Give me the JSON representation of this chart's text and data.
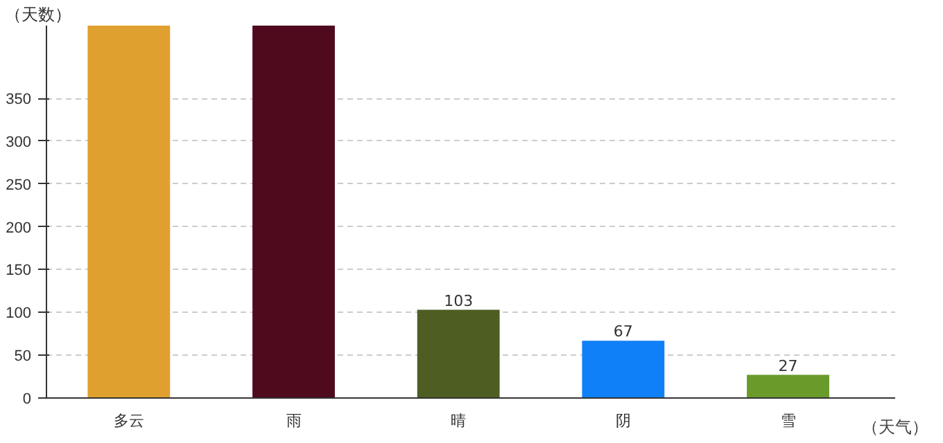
{
  "chart_data": {
    "type": "bar",
    "xlabel": "（天气）",
    "ylabel": "（天数）",
    "categories": [
      "多云",
      "雨",
      "晴",
      "阴",
      "雪"
    ],
    "values": [
      435,
      435,
      103,
      67,
      27
    ],
    "colors": [
      "#e0a030",
      "#500a1e",
      "#4e5e22",
      "#1080f8",
      "#6a9a2a"
    ],
    "value_labels": [
      null,
      null,
      "103",
      "67",
      "27"
    ],
    "ylim": [
      0,
      435
    ],
    "yticks": [
      0,
      50,
      100,
      150,
      200,
      250,
      300,
      350
    ],
    "grid": "y"
  }
}
